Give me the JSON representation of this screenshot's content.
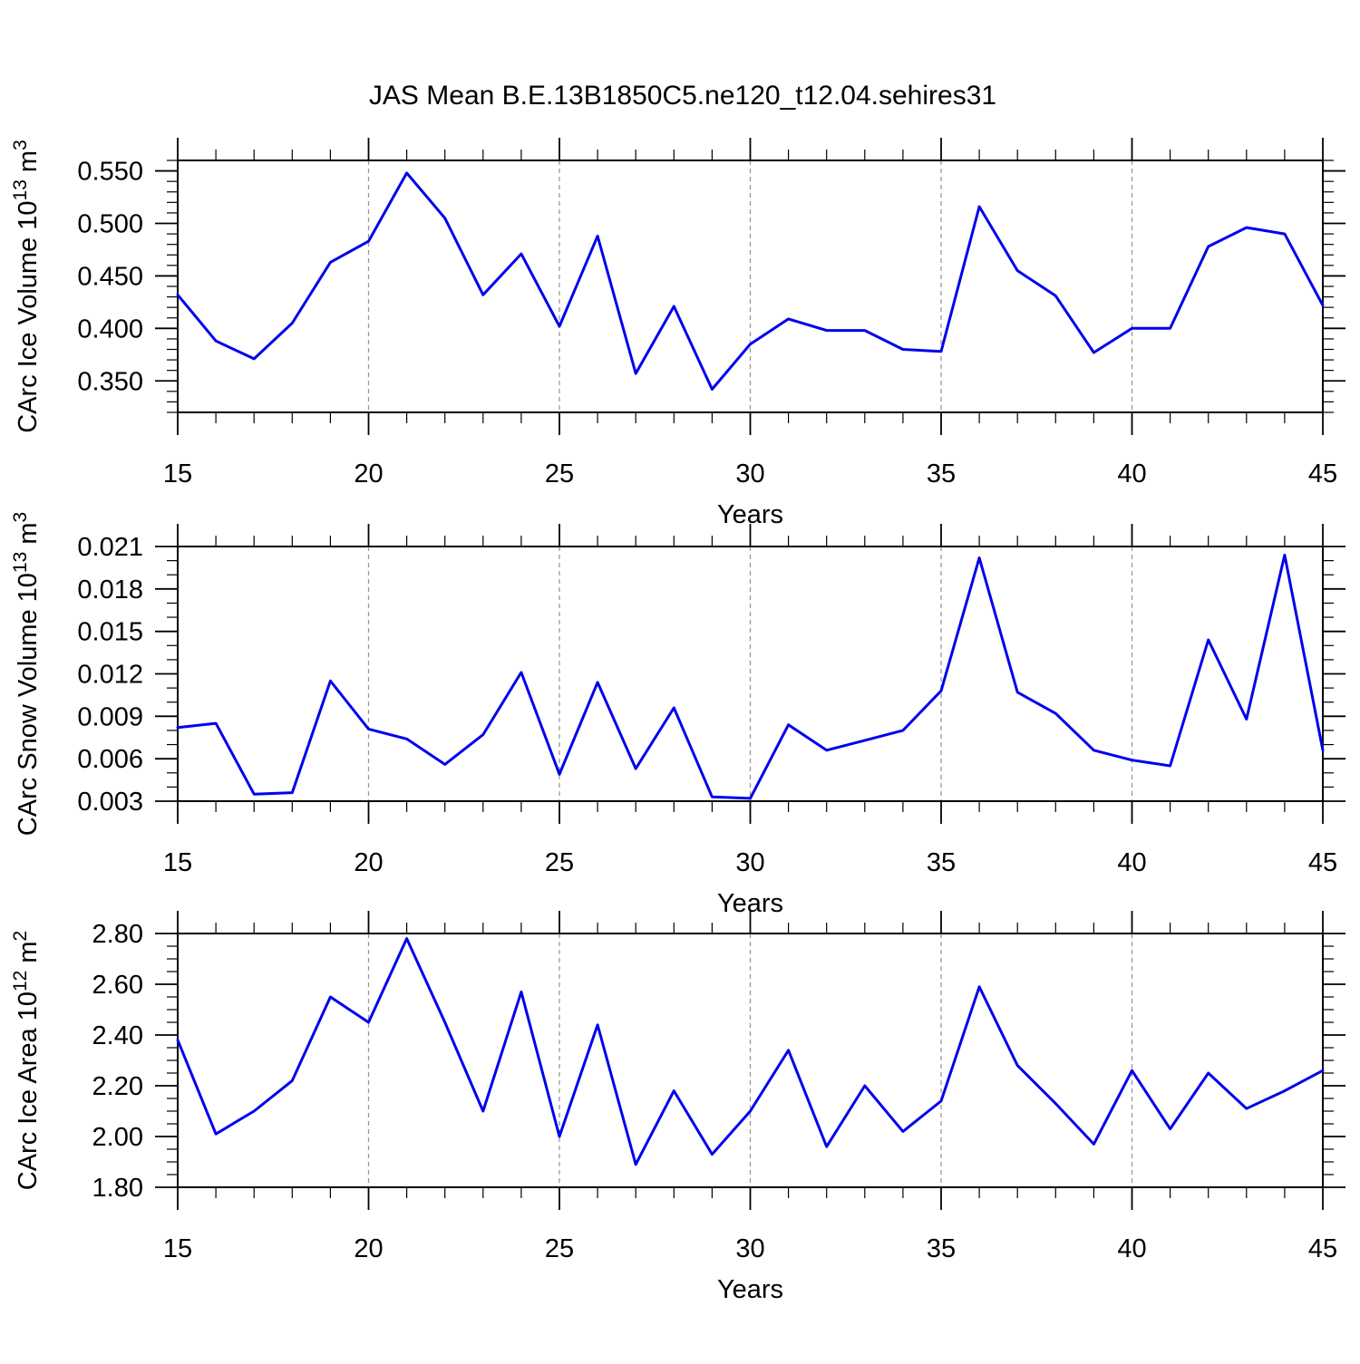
{
  "title": "JAS Mean B.E.13B1850C5.ne120_t12.04.sehires31",
  "colors": {
    "line": "#0000ee",
    "grid": "#999999",
    "axis": "#000000",
    "text": "#000000",
    "background": "#ffffff"
  },
  "x_axis": {
    "label": "Years",
    "min": 15,
    "max": 45,
    "major_tick_values": [
      15,
      20,
      25,
      30,
      35,
      40,
      45
    ],
    "tick_labels": [
      "15",
      "20",
      "25",
      "30",
      "35",
      "40",
      "45"
    ],
    "minor_step": 1,
    "gridline_years": [
      20,
      25,
      30,
      35,
      40
    ]
  },
  "chart_data": [
    {
      "type": "line",
      "name": "carc-ice-volume",
      "title": "",
      "ylabel_text": "CArc Ice Volume 10^13 m^3",
      "ylabel_parts": [
        [
          "CArc Ice Volume 10",
          false
        ],
        [
          "13",
          true
        ],
        [
          " m",
          false
        ],
        [
          "3",
          true
        ]
      ],
      "xlabel": "Years",
      "ylim": [
        0.32,
        0.56
      ],
      "ytick_values": [
        0.35,
        0.4,
        0.45,
        0.5,
        0.55
      ],
      "ytick_labels": [
        "0.350",
        "0.400",
        "0.450",
        "0.500",
        "0.550"
      ],
      "y_minor_step": 0.01,
      "grid": "vertical-dashed",
      "legend": "none",
      "x": [
        15,
        16,
        17,
        18,
        19,
        20,
        21,
        22,
        23,
        24,
        25,
        26,
        27,
        28,
        29,
        30,
        31,
        32,
        33,
        34,
        35,
        36,
        37,
        38,
        39,
        40,
        41,
        42,
        43,
        44,
        45
      ],
      "values": [
        0.432,
        0.388,
        0.371,
        0.405,
        0.463,
        0.483,
        0.548,
        0.505,
        0.432,
        0.471,
        0.402,
        0.488,
        0.357,
        0.421,
        0.342,
        0.385,
        0.409,
        0.398,
        0.398,
        0.38,
        0.378,
        0.516,
        0.455,
        0.431,
        0.377,
        0.4,
        0.4,
        0.478,
        0.496,
        0.49,
        0.422
      ]
    },
    {
      "type": "line",
      "name": "carc-snow-volume",
      "title": "",
      "ylabel_text": "CArc Snow Volume 10^13 m^3",
      "ylabel_parts": [
        [
          "CArc Snow Volume 10",
          false
        ],
        [
          "13",
          true
        ],
        [
          " m",
          false
        ],
        [
          "3",
          true
        ]
      ],
      "xlabel": "Years",
      "ylim": [
        0.003,
        0.021
      ],
      "ytick_values": [
        0.003,
        0.006,
        0.009,
        0.012,
        0.015,
        0.018,
        0.021
      ],
      "ytick_labels": [
        "0.003",
        "0.006",
        "0.009",
        "0.012",
        "0.015",
        "0.018",
        "0.021"
      ],
      "y_minor_step": 0.001,
      "grid": "vertical-dashed",
      "legend": "none",
      "x": [
        15,
        16,
        17,
        18,
        19,
        20,
        21,
        22,
        23,
        24,
        25,
        26,
        27,
        28,
        29,
        30,
        31,
        32,
        33,
        34,
        35,
        36,
        37,
        38,
        39,
        40,
        41,
        42,
        43,
        44,
        45
      ],
      "values": [
        0.0082,
        0.0085,
        0.0035,
        0.0036,
        0.0115,
        0.0081,
        0.0074,
        0.0056,
        0.0077,
        0.0121,
        0.0049,
        0.0114,
        0.0053,
        0.0096,
        0.0033,
        0.0032,
        0.0084,
        0.0066,
        0.0073,
        0.008,
        0.0108,
        0.0202,
        0.0107,
        0.0092,
        0.0066,
        0.0059,
        0.0055,
        0.0144,
        0.0088,
        0.0204,
        0.0066
      ]
    },
    {
      "type": "line",
      "name": "carc-ice-area",
      "title": "",
      "ylabel_text": "CArc Ice Area 10^12 m^2",
      "ylabel_parts": [
        [
          "CArc Ice Area 10",
          false
        ],
        [
          "12",
          true
        ],
        [
          " m",
          false
        ],
        [
          "2",
          true
        ]
      ],
      "xlabel": "Years",
      "ylim": [
        1.8,
        2.8
      ],
      "ytick_values": [
        1.8,
        2.0,
        2.2,
        2.4,
        2.6,
        2.8
      ],
      "ytick_labels": [
        "1.80",
        "2.00",
        "2.20",
        "2.40",
        "2.60",
        "2.80"
      ],
      "y_minor_step": 0.05,
      "grid": "vertical-dashed",
      "legend": "none",
      "x": [
        15,
        16,
        17,
        18,
        19,
        20,
        21,
        22,
        23,
        24,
        25,
        26,
        27,
        28,
        29,
        30,
        31,
        32,
        33,
        34,
        35,
        36,
        37,
        38,
        39,
        40,
        41,
        42,
        43,
        44,
        45
      ],
      "values": [
        2.38,
        2.01,
        2.1,
        2.22,
        2.55,
        2.45,
        2.78,
        2.45,
        2.1,
        2.57,
        2.0,
        2.44,
        1.89,
        2.18,
        1.93,
        2.1,
        2.34,
        1.96,
        2.2,
        2.02,
        2.14,
        2.59,
        2.28,
        2.13,
        1.97,
        2.26,
        2.03,
        2.25,
        2.11,
        2.18,
        2.26
      ]
    }
  ]
}
